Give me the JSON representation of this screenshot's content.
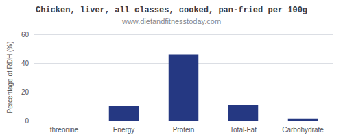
{
  "chart_data": {
    "type": "bar",
    "title": "Chicken, liver, all classes, cooked, pan-fried per 100g",
    "subtitle": "www.dietandfitnesstoday.com",
    "categories": [
      "threonine",
      "Energy",
      "Protein",
      "Total-Fat",
      "Carbohydrate"
    ],
    "values": [
      0,
      10,
      46,
      11,
      1.5
    ],
    "color": "#253882",
    "ylabel": "Percentage of RDH (%)",
    "ylim": [
      0,
      60
    ],
    "yticks": [
      0,
      20,
      40,
      60
    ],
    "grid": true
  }
}
